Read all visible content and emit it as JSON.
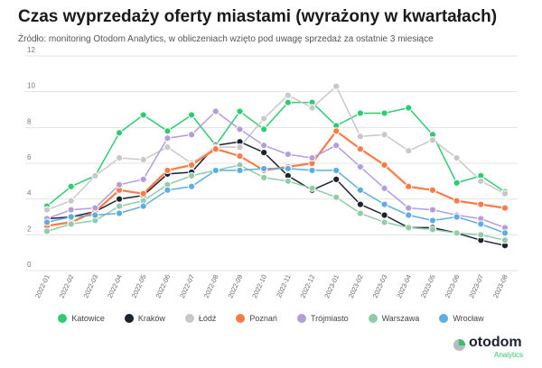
{
  "chart_data": {
    "type": "line",
    "title": "Czas wyprzedaży oferty miastami (wyrażony w kwartałach)",
    "subtitle": "Źródło: monitoring Otodom Analytics, w obliczeniach wzięto pod uwagę sprzedaż za ostatnie 3 miesiące",
    "categories": [
      "2022-01",
      "2022-02",
      "2022-03",
      "2022-04",
      "2022-05",
      "2022-06",
      "2022-07",
      "2022-08",
      "2022-09",
      "2022-10",
      "2022-11",
      "2022-12",
      "2023-01",
      "2023-02",
      "2023-03",
      "2023-04",
      "2023-05",
      "2023-06",
      "2023-07",
      "2023-08"
    ],
    "ylim": [
      0,
      12
    ],
    "yticks": [
      "0",
      "2",
      "4",
      "6",
      "8",
      "10",
      "12"
    ],
    "grid": true,
    "legend_position": "bottom",
    "series": [
      {
        "name": "Katowice",
        "color": "#2ecc71",
        "values": [
          3.6,
          4.7,
          5.3,
          7.7,
          8.7,
          7.8,
          8.7,
          7.0,
          8.9,
          7.9,
          9.4,
          9.4,
          8.1,
          8.8,
          8.8,
          9.1,
          7.6,
          4.9,
          5.3,
          4.4
        ]
      },
      {
        "name": "Kraków",
        "color": "#1c2230",
        "values": [
          2.9,
          3.0,
          3.3,
          4.0,
          4.2,
          5.4,
          5.5,
          7.0,
          7.2,
          6.6,
          5.3,
          4.5,
          5.1,
          3.7,
          3.1,
          2.4,
          2.4,
          2.1,
          1.7,
          1.4
        ]
      },
      {
        "name": "Łódź",
        "color": "#c8c8c8",
        "values": [
          3.4,
          3.9,
          5.3,
          6.3,
          6.2,
          6.9,
          6.0,
          6.9,
          6.9,
          8.5,
          9.8,
          9.1,
          10.3,
          7.5,
          7.6,
          6.7,
          7.3,
          6.3,
          5.0,
          4.3
        ]
      },
      {
        "name": "Poznań",
        "color": "#ff7a45",
        "values": [
          2.5,
          2.7,
          3.3,
          4.5,
          4.3,
          5.6,
          5.9,
          6.8,
          6.4,
          5.6,
          5.8,
          6.0,
          7.8,
          6.8,
          5.9,
          4.7,
          4.5,
          3.9,
          3.7,
          3.5
        ]
      },
      {
        "name": "Trójmiasto",
        "color": "#b39ddb",
        "values": [
          2.9,
          3.4,
          3.5,
          4.8,
          5.1,
          7.4,
          7.6,
          8.9,
          7.9,
          7.0,
          6.5,
          6.3,
          7.0,
          5.8,
          4.6,
          3.5,
          3.4,
          3.1,
          2.9,
          2.4
        ]
      },
      {
        "name": "Warszawa",
        "color": "#8fcca8",
        "values": [
          2.2,
          2.6,
          2.8,
          3.6,
          3.9,
          4.8,
          5.3,
          5.6,
          5.9,
          5.2,
          5.0,
          4.6,
          4.1,
          3.2,
          2.7,
          2.4,
          2.3,
          2.1,
          2.0,
          1.7
        ]
      },
      {
        "name": "Wrocław",
        "color": "#5dade2",
        "values": [
          2.7,
          3.0,
          3.1,
          3.2,
          3.6,
          4.5,
          4.7,
          5.6,
          5.6,
          5.7,
          5.7,
          5.6,
          5.6,
          4.5,
          3.7,
          3.1,
          2.8,
          3.0,
          2.6,
          2.1
        ]
      }
    ]
  },
  "logo": {
    "name": "otodom",
    "sub": "Analytics"
  }
}
